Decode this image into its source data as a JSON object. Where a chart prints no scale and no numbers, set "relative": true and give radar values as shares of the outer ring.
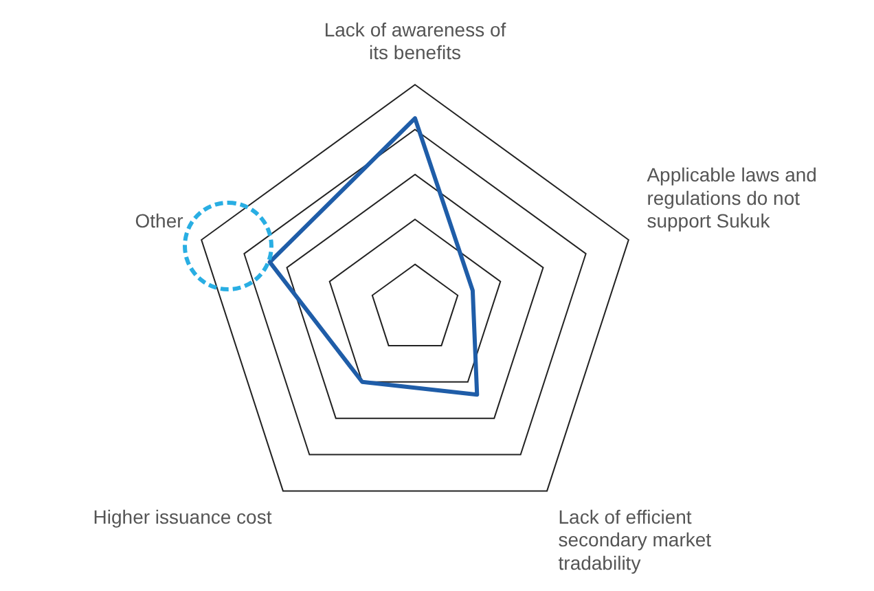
{
  "chart_data": {
    "type": "radar",
    "relative": true,
    "grid": true,
    "categories": [
      "Lack of awareness of its benefits",
      "Applicable laws and regulations do not support Sukuk",
      "Lack of efficient secondary market tradability",
      "Higher issuance cost",
      "Other"
    ],
    "series": [
      {
        "color": "#1f5da8",
        "values": [
          0.85,
          0.27,
          0.47,
          0.4,
          0.68
        ]
      }
    ]
  }
}
